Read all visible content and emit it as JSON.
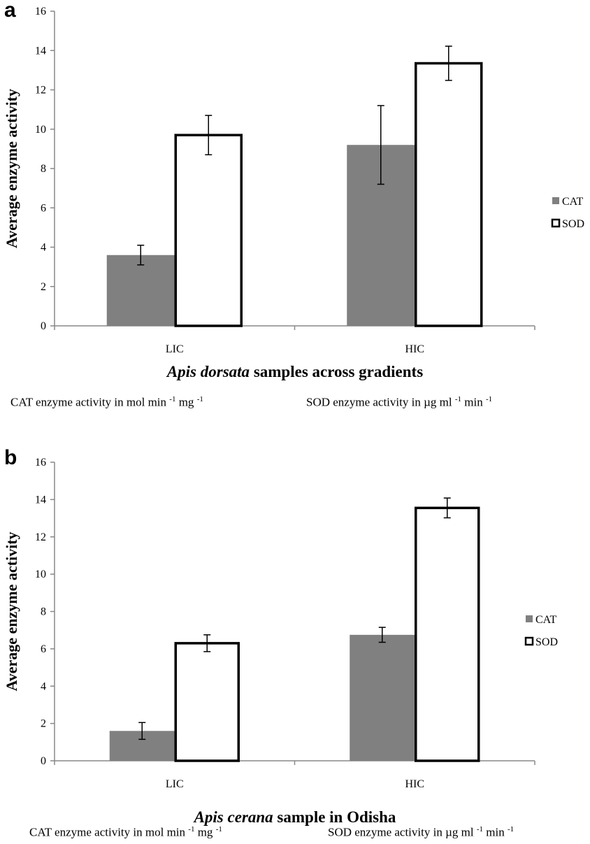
{
  "chart_data": [
    {
      "type": "bar",
      "panel_label": "a",
      "categories": [
        "LIC",
        "HIC"
      ],
      "series": [
        {
          "name": "CAT",
          "values": [
            3.6,
            9.2
          ],
          "errors": [
            0.5,
            2.0
          ],
          "color": "#808080"
        },
        {
          "name": "SOD",
          "values": [
            9.7,
            13.35
          ],
          "errors": [
            1.0,
            0.87
          ],
          "color": "#ffffff"
        }
      ],
      "ylabel": "Average enzyme activity",
      "xlabel_italic": "Apis dorsata",
      "xlabel_rest": " samples across gradients",
      "ylim": [
        0,
        16
      ],
      "yticks": [
        "0",
        "2",
        "4",
        "6",
        "8",
        "10",
        "12",
        "14",
        "16"
      ],
      "legend": "right",
      "units": {
        "cat_prefix": "CAT enzyme activity in mol min ",
        "cat_sup1": "-1",
        "cat_mid": " mg ",
        "cat_sup2": "-1",
        "sod_prefix": "SOD enzyme activity in µg ml ",
        "sod_sup1": "-1",
        "sod_mid": " min ",
        "sod_sup2": "-1"
      }
    },
    {
      "type": "bar",
      "panel_label": "b",
      "categories": [
        "LIC",
        "HIC"
      ],
      "series": [
        {
          "name": "CAT",
          "values": [
            1.6,
            6.75
          ],
          "errors": [
            0.45,
            0.4
          ],
          "color": "#808080"
        },
        {
          "name": "SOD",
          "values": [
            6.3,
            13.55
          ],
          "errors": [
            0.45,
            0.53
          ],
          "color": "#ffffff"
        }
      ],
      "ylabel": "Average enzyme activity",
      "xlabel_italic": "Apis cerana",
      "xlabel_rest": " sample in Odisha",
      "ylim": [
        0,
        16
      ],
      "yticks": [
        "0",
        "2",
        "4",
        "6",
        "8",
        "10",
        "12",
        "14",
        "16"
      ],
      "legend": "right",
      "units": {
        "cat_prefix": "CAT enzyme activity in mol min ",
        "cat_sup1": "-1",
        "cat_mid": " mg ",
        "cat_sup2": "-1",
        "sod_prefix": "SOD enzyme activity in µg ml ",
        "sod_sup1": "-1",
        "sod_mid": " min ",
        "sod_sup2": "-1"
      }
    }
  ]
}
